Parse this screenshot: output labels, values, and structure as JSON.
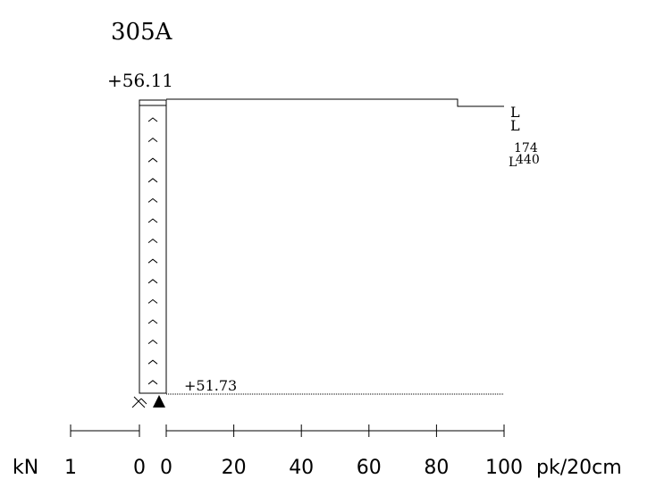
{
  "title": "305A",
  "elevation_top": "+56.11",
  "elevation_bottom": "+51.73",
  "right_markers": {
    "marker_1": "L",
    "marker_2": "L",
    "value_1": "174",
    "value_2": "440",
    "marker_3": "L"
  },
  "left_scale": {
    "unit": "kN",
    "ticks": [
      "1",
      "0"
    ]
  },
  "right_scale": {
    "ticks": [
      "0",
      "20",
      "40",
      "60",
      "80",
      "100"
    ],
    "unit": "pk/20cm"
  },
  "column": {
    "chevron_count": 14
  }
}
